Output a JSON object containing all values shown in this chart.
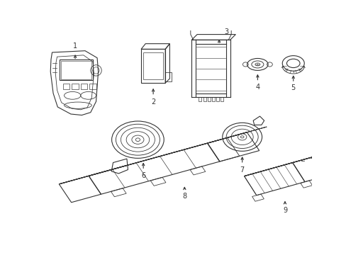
{
  "background_color": "#ffffff",
  "line_color": "#333333",
  "line_width": 0.8,
  "fig_width": 4.89,
  "fig_height": 3.6,
  "dpi": 100
}
